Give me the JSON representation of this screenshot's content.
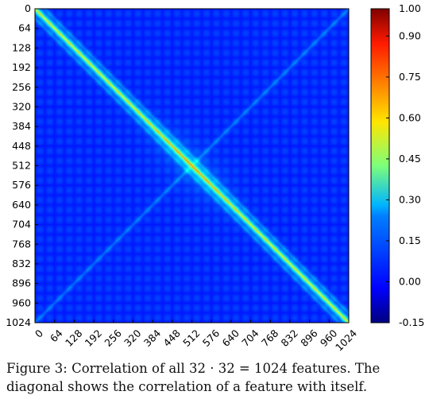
{
  "chart_data": {
    "type": "heatmap",
    "title": "",
    "xlabel": "",
    "ylabel": "",
    "x_ticks": [
      "0",
      "64",
      "128",
      "192",
      "256",
      "320",
      "384",
      "448",
      "512",
      "576",
      "640",
      "704",
      "768",
      "832",
      "896",
      "960",
      "1024"
    ],
    "y_ticks": [
      "0",
      "64",
      "128",
      "192",
      "256",
      "320",
      "384",
      "448",
      "512",
      "576",
      "640",
      "704",
      "768",
      "832",
      "896",
      "960",
      "1024"
    ],
    "xlim": [
      0,
      1024
    ],
    "ylim": [
      0,
      1024
    ],
    "y_inverted": true,
    "colormap": "jet",
    "colorbar": {
      "range": [
        -0.15,
        1.0
      ],
      "ticks": [
        "1.00",
        "0.90",
        "0.75",
        "0.60",
        "0.45",
        "0.30",
        "0.15",
        "0.00",
        "-0.15"
      ]
    },
    "matrix_size": 1024,
    "diagonal_value": 1.0,
    "grid_period": 32,
    "approx_background_value": 0.02
  },
  "caption": {
    "line1": "Figure 3: Correlation of all  32 · 32  =  1024  features. The",
    "line2": "diagonal shows the correlation of a feature with itself."
  }
}
